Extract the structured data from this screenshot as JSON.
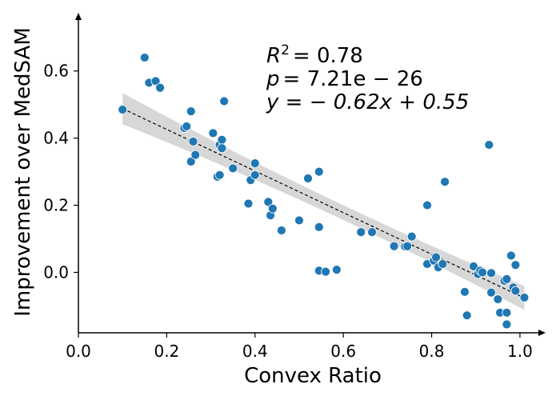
{
  "chart_data": {
    "type": "scatter",
    "xlabel": "Convex Ratio",
    "ylabel": "Improvement over MedSAM",
    "xlim": [
      0.0,
      1.04
    ],
    "ylim": [
      -0.18,
      0.74
    ],
    "xticks": [
      "0.0",
      "0.2",
      "0.4",
      "0.6",
      "0.8",
      "1.0"
    ],
    "yticks": [
      "0.0",
      "0.2",
      "0.4",
      "0.6"
    ],
    "point_color": "#1f77b4",
    "band_color": "#d3d3d3",
    "annotations": {
      "r2_symbol": "R",
      "r2_power": "2",
      "r2_value": "= 0.78",
      "p_symbol": "p",
      "p_value": "= 7.21e − 26",
      "eq": "y = − 0.62x + 0.55"
    },
    "regression": {
      "slope": -0.62,
      "intercept": 0.55,
      "x_range": [
        0.1,
        1.01
      ]
    },
    "points": [
      [
        0.1,
        0.485
      ],
      [
        0.15,
        0.64
      ],
      [
        0.16,
        0.565
      ],
      [
        0.175,
        0.57
      ],
      [
        0.185,
        0.55
      ],
      [
        0.24,
        0.43
      ],
      [
        0.245,
        0.435
      ],
      [
        0.255,
        0.48
      ],
      [
        0.255,
        0.33
      ],
      [
        0.26,
        0.39
      ],
      [
        0.265,
        0.35
      ],
      [
        0.305,
        0.415
      ],
      [
        0.315,
        0.285
      ],
      [
        0.32,
        0.29
      ],
      [
        0.32,
        0.38
      ],
      [
        0.325,
        0.395
      ],
      [
        0.325,
        0.37
      ],
      [
        0.33,
        0.51
      ],
      [
        0.35,
        0.31
      ],
      [
        0.385,
        0.205
      ],
      [
        0.39,
        0.275
      ],
      [
        0.4,
        0.325
      ],
      [
        0.4,
        0.29
      ],
      [
        0.43,
        0.21
      ],
      [
        0.435,
        0.17
      ],
      [
        0.44,
        0.19
      ],
      [
        0.46,
        0.125
      ],
      [
        0.5,
        0.155
      ],
      [
        0.52,
        0.28
      ],
      [
        0.545,
        0.3
      ],
      [
        0.545,
        0.135
      ],
      [
        0.545,
        0.005
      ],
      [
        0.56,
        0.002
      ],
      [
        0.585,
        0.008
      ],
      [
        0.64,
        0.12
      ],
      [
        0.665,
        0.12
      ],
      [
        0.715,
        0.078
      ],
      [
        0.74,
        0.077
      ],
      [
        0.745,
        0.078
      ],
      [
        0.755,
        0.107
      ],
      [
        0.79,
        0.2
      ],
      [
        0.79,
        0.025
      ],
      [
        0.805,
        0.035
      ],
      [
        0.81,
        0.045
      ],
      [
        0.815,
        0.015
      ],
      [
        0.825,
        0.025
      ],
      [
        0.83,
        0.27
      ],
      [
        0.875,
        -0.058
      ],
      [
        0.88,
        -0.128
      ],
      [
        0.895,
        0.018
      ],
      [
        0.905,
        -0.005
      ],
      [
        0.91,
        0.005
      ],
      [
        0.915,
        0.0
      ],
      [
        0.93,
        0.38
      ],
      [
        0.935,
        -0.002
      ],
      [
        0.935,
        -0.06
      ],
      [
        0.95,
        -0.08
      ],
      [
        0.955,
        -0.12
      ],
      [
        0.965,
        -0.025
      ],
      [
        0.97,
        -0.02
      ],
      [
        0.97,
        -0.12
      ],
      [
        0.97,
        -0.155
      ],
      [
        0.98,
        0.05
      ],
      [
        0.985,
        -0.045
      ],
      [
        0.99,
        -0.055
      ],
      [
        0.99,
        0.022
      ],
      [
        1.01,
        -0.075
      ]
    ]
  }
}
